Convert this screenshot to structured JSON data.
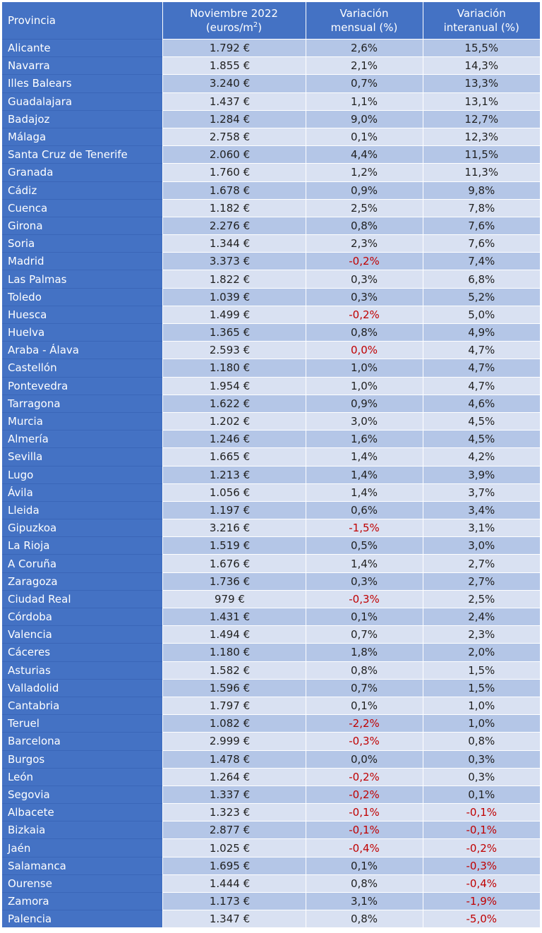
{
  "table": {
    "headers": {
      "provincia": "Provincia",
      "precio_line1": "Noviembre 2022",
      "precio_line2": "(euros/m",
      "precio_sup": "2",
      "precio_close": ")",
      "mensual_line1": "Variación",
      "mensual_line2": "mensual (%)",
      "interanual_line1": "Variación",
      "interanual_line2": "interanual (%)"
    },
    "rows": [
      {
        "provincia": "Alicante",
        "precio": "1.792 €",
        "mensual": "2,6%",
        "interanual": "15,5%"
      },
      {
        "provincia": "Navarra",
        "precio": "1.855 €",
        "mensual": "2,1%",
        "interanual": "14,3%"
      },
      {
        "provincia": "Illes Balears",
        "precio": "3.240 €",
        "mensual": "0,7%",
        "interanual": "13,3%"
      },
      {
        "provincia": "Guadalajara",
        "precio": "1.437 €",
        "mensual": "1,1%",
        "interanual": "13,1%"
      },
      {
        "provincia": "Badajoz",
        "precio": "1.284 €",
        "mensual": "9,0%",
        "interanual": "12,7%"
      },
      {
        "provincia": "Málaga",
        "precio": "2.758 €",
        "mensual": "0,1%",
        "interanual": "12,3%"
      },
      {
        "provincia": "Santa Cruz de Tenerife",
        "precio": "2.060 €",
        "mensual": "4,4%",
        "interanual": "11,5%"
      },
      {
        "provincia": "Granada",
        "precio": "1.760 €",
        "mensual": "1,2%",
        "interanual": "11,3%"
      },
      {
        "provincia": "Cádiz",
        "precio": "1.678 €",
        "mensual": "0,9%",
        "interanual": "9,8%"
      },
      {
        "provincia": "Cuenca",
        "precio": "1.182 €",
        "mensual": "2,5%",
        "interanual": "7,8%"
      },
      {
        "provincia": "Girona",
        "precio": "2.276 €",
        "mensual": "0,8%",
        "interanual": "7,6%"
      },
      {
        "provincia": "Soria",
        "precio": "1.344 €",
        "mensual": "2,3%",
        "interanual": "7,6%"
      },
      {
        "provincia": "Madrid",
        "precio": "3.373 €",
        "mensual": "-0,2%",
        "interanual": "7,4%"
      },
      {
        "provincia": "Las Palmas",
        "precio": "1.822 €",
        "mensual": "0,3%",
        "interanual": "6,8%"
      },
      {
        "provincia": "Toledo",
        "precio": "1.039 €",
        "mensual": "0,3%",
        "interanual": "5,2%"
      },
      {
        "provincia": "Huesca",
        "precio": "1.499 €",
        "mensual": "-0,2%",
        "interanual": "5,0%"
      },
      {
        "provincia": "Huelva",
        "precio": "1.365 €",
        "mensual": "0,8%",
        "interanual": "4,9%"
      },
      {
        "provincia": "Araba - Álava",
        "precio": "2.593 €",
        "mensual": "0,0%",
        "interanual": "4,7%"
      },
      {
        "provincia": "Castellón",
        "precio": "1.180 €",
        "mensual": "1,0%",
        "interanual": "4,7%"
      },
      {
        "provincia": "Pontevedra",
        "precio": "1.954 €",
        "mensual": "1,0%",
        "interanual": "4,7%"
      },
      {
        "provincia": "Tarragona",
        "precio": "1.622 €",
        "mensual": "0,9%",
        "interanual": "4,6%"
      },
      {
        "provincia": "Murcia",
        "precio": "1.202 €",
        "mensual": "3,0%",
        "interanual": "4,5%"
      },
      {
        "provincia": "Almería",
        "precio": "1.246 €",
        "mensual": "1,6%",
        "interanual": "4,5%"
      },
      {
        "provincia": "Sevilla",
        "precio": "1.665 €",
        "mensual": "1,4%",
        "interanual": "4,2%"
      },
      {
        "provincia": "Lugo",
        "precio": "1.213 €",
        "mensual": "1,4%",
        "interanual": "3,9%"
      },
      {
        "provincia": "Ávila",
        "precio": "1.056 €",
        "mensual": "1,4%",
        "interanual": "3,7%"
      },
      {
        "provincia": "Lleida",
        "precio": "1.197 €",
        "mensual": "0,6%",
        "interanual": "3,4%"
      },
      {
        "provincia": "Gipuzkoa",
        "precio": "3.216 €",
        "mensual": "-1,5%",
        "interanual": "3,1%"
      },
      {
        "provincia": "La Rioja",
        "precio": "1.519 €",
        "mensual": "0,5%",
        "interanual": "3,0%"
      },
      {
        "provincia": "A Coruña",
        "precio": "1.676 €",
        "mensual": "1,4%",
        "interanual": "2,7%"
      },
      {
        "provincia": "Zaragoza",
        "precio": "1.736 €",
        "mensual": "0,3%",
        "interanual": "2,7%"
      },
      {
        "provincia": "Ciudad Real",
        "precio": "979 €",
        "mensual": "-0,3%",
        "interanual": "2,5%"
      },
      {
        "provincia": "Córdoba",
        "precio": "1.431 €",
        "mensual": "0,1%",
        "interanual": "2,4%"
      },
      {
        "provincia": "Valencia",
        "precio": "1.494 €",
        "mensual": "0,7%",
        "interanual": "2,3%"
      },
      {
        "provincia": "Cáceres",
        "precio": "1.180 €",
        "mensual": "1,8%",
        "interanual": "2,0%"
      },
      {
        "provincia": "Asturias",
        "precio": "1.582 €",
        "mensual": "0,8%",
        "interanual": "1,5%"
      },
      {
        "provincia": "Valladolid",
        "precio": "1.596 €",
        "mensual": "0,7%",
        "interanual": "1,5%"
      },
      {
        "provincia": "Cantabria",
        "precio": "1.797 €",
        "mensual": "0,1%",
        "interanual": "1,0%"
      },
      {
        "provincia": "Teruel",
        "precio": "1.082 €",
        "mensual": "-2,2%",
        "interanual": "1,0%"
      },
      {
        "provincia": "Barcelona",
        "precio": "2.999 €",
        "mensual": "-0,3%",
        "interanual": "0,8%"
      },
      {
        "provincia": "Burgos",
        "precio": "1.478 €",
        "mensual": "0,0%",
        "interanual": "0,3%"
      },
      {
        "provincia": "León",
        "precio": "1.264 €",
        "mensual": "-0,2%",
        "interanual": "0,3%"
      },
      {
        "provincia": "Segovia",
        "precio": "1.337 €",
        "mensual": "-0,2%",
        "interanual": "0,1%"
      },
      {
        "provincia": "Albacete",
        "precio": "1.323 €",
        "mensual": "-0,1%",
        "interanual": "-0,1%"
      },
      {
        "provincia": "Bizkaia",
        "precio": "2.877 €",
        "mensual": "-0,1%",
        "interanual": "-0,1%"
      },
      {
        "provincia": "Jaén",
        "precio": "1.025 €",
        "mensual": "-0,4%",
        "interanual": "-0,2%"
      },
      {
        "provincia": "Salamanca",
        "precio": "1.695 €",
        "mensual": "0,1%",
        "interanual": "-0,3%"
      },
      {
        "provincia": "Ourense",
        "precio": "1.444 €",
        "mensual": "0,8%",
        "interanual": "-0,4%"
      },
      {
        "provincia": "Zamora",
        "precio": "1.173 €",
        "mensual": "3,1%",
        "interanual": "-1,9%"
      },
      {
        "provincia": "Palencia",
        "precio": "1.347 €",
        "mensual": "0,8%",
        "interanual": "-5,0%"
      }
    ],
    "red_cells": [
      "12.mensual",
      "15.mensual",
      "17.mensual",
      "27.mensual",
      "31.mensual",
      "38.mensual",
      "39.mensual",
      "41.mensual",
      "42.mensual",
      "43.mensual",
      "43.interanual",
      "44.mensual",
      "44.interanual",
      "45.mensual",
      "45.interanual",
      "46.interanual",
      "47.interanual",
      "48.interanual",
      "49.interanual"
    ]
  },
  "colors": {
    "header_blue": "#4472c4",
    "band_dark": "#b4c6e7",
    "band_light": "#d9e1f2",
    "negative_red": "#c00000"
  }
}
